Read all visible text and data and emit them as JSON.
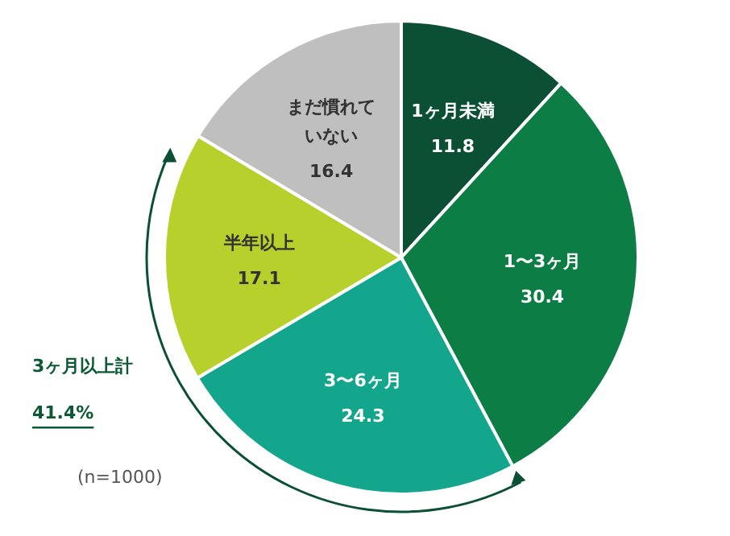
{
  "chart_data": {
    "type": "pie",
    "categories": [
      "1ヶ月未満",
      "1〜3ヶ月",
      "3〜6ヶ月",
      "半年以上",
      "まだ慣れていない"
    ],
    "values": [
      11.8,
      30.4,
      24.3,
      17.1,
      16.4
    ],
    "colors": [
      "#0b4f35",
      "#0c7d44",
      "#14a68c",
      "#b8d02c",
      "#bfbfbf"
    ],
    "data_labels": true,
    "annotations": [
      "3ヶ月以上計",
      "41.4%",
      "(n=1000)"
    ]
  }
}
